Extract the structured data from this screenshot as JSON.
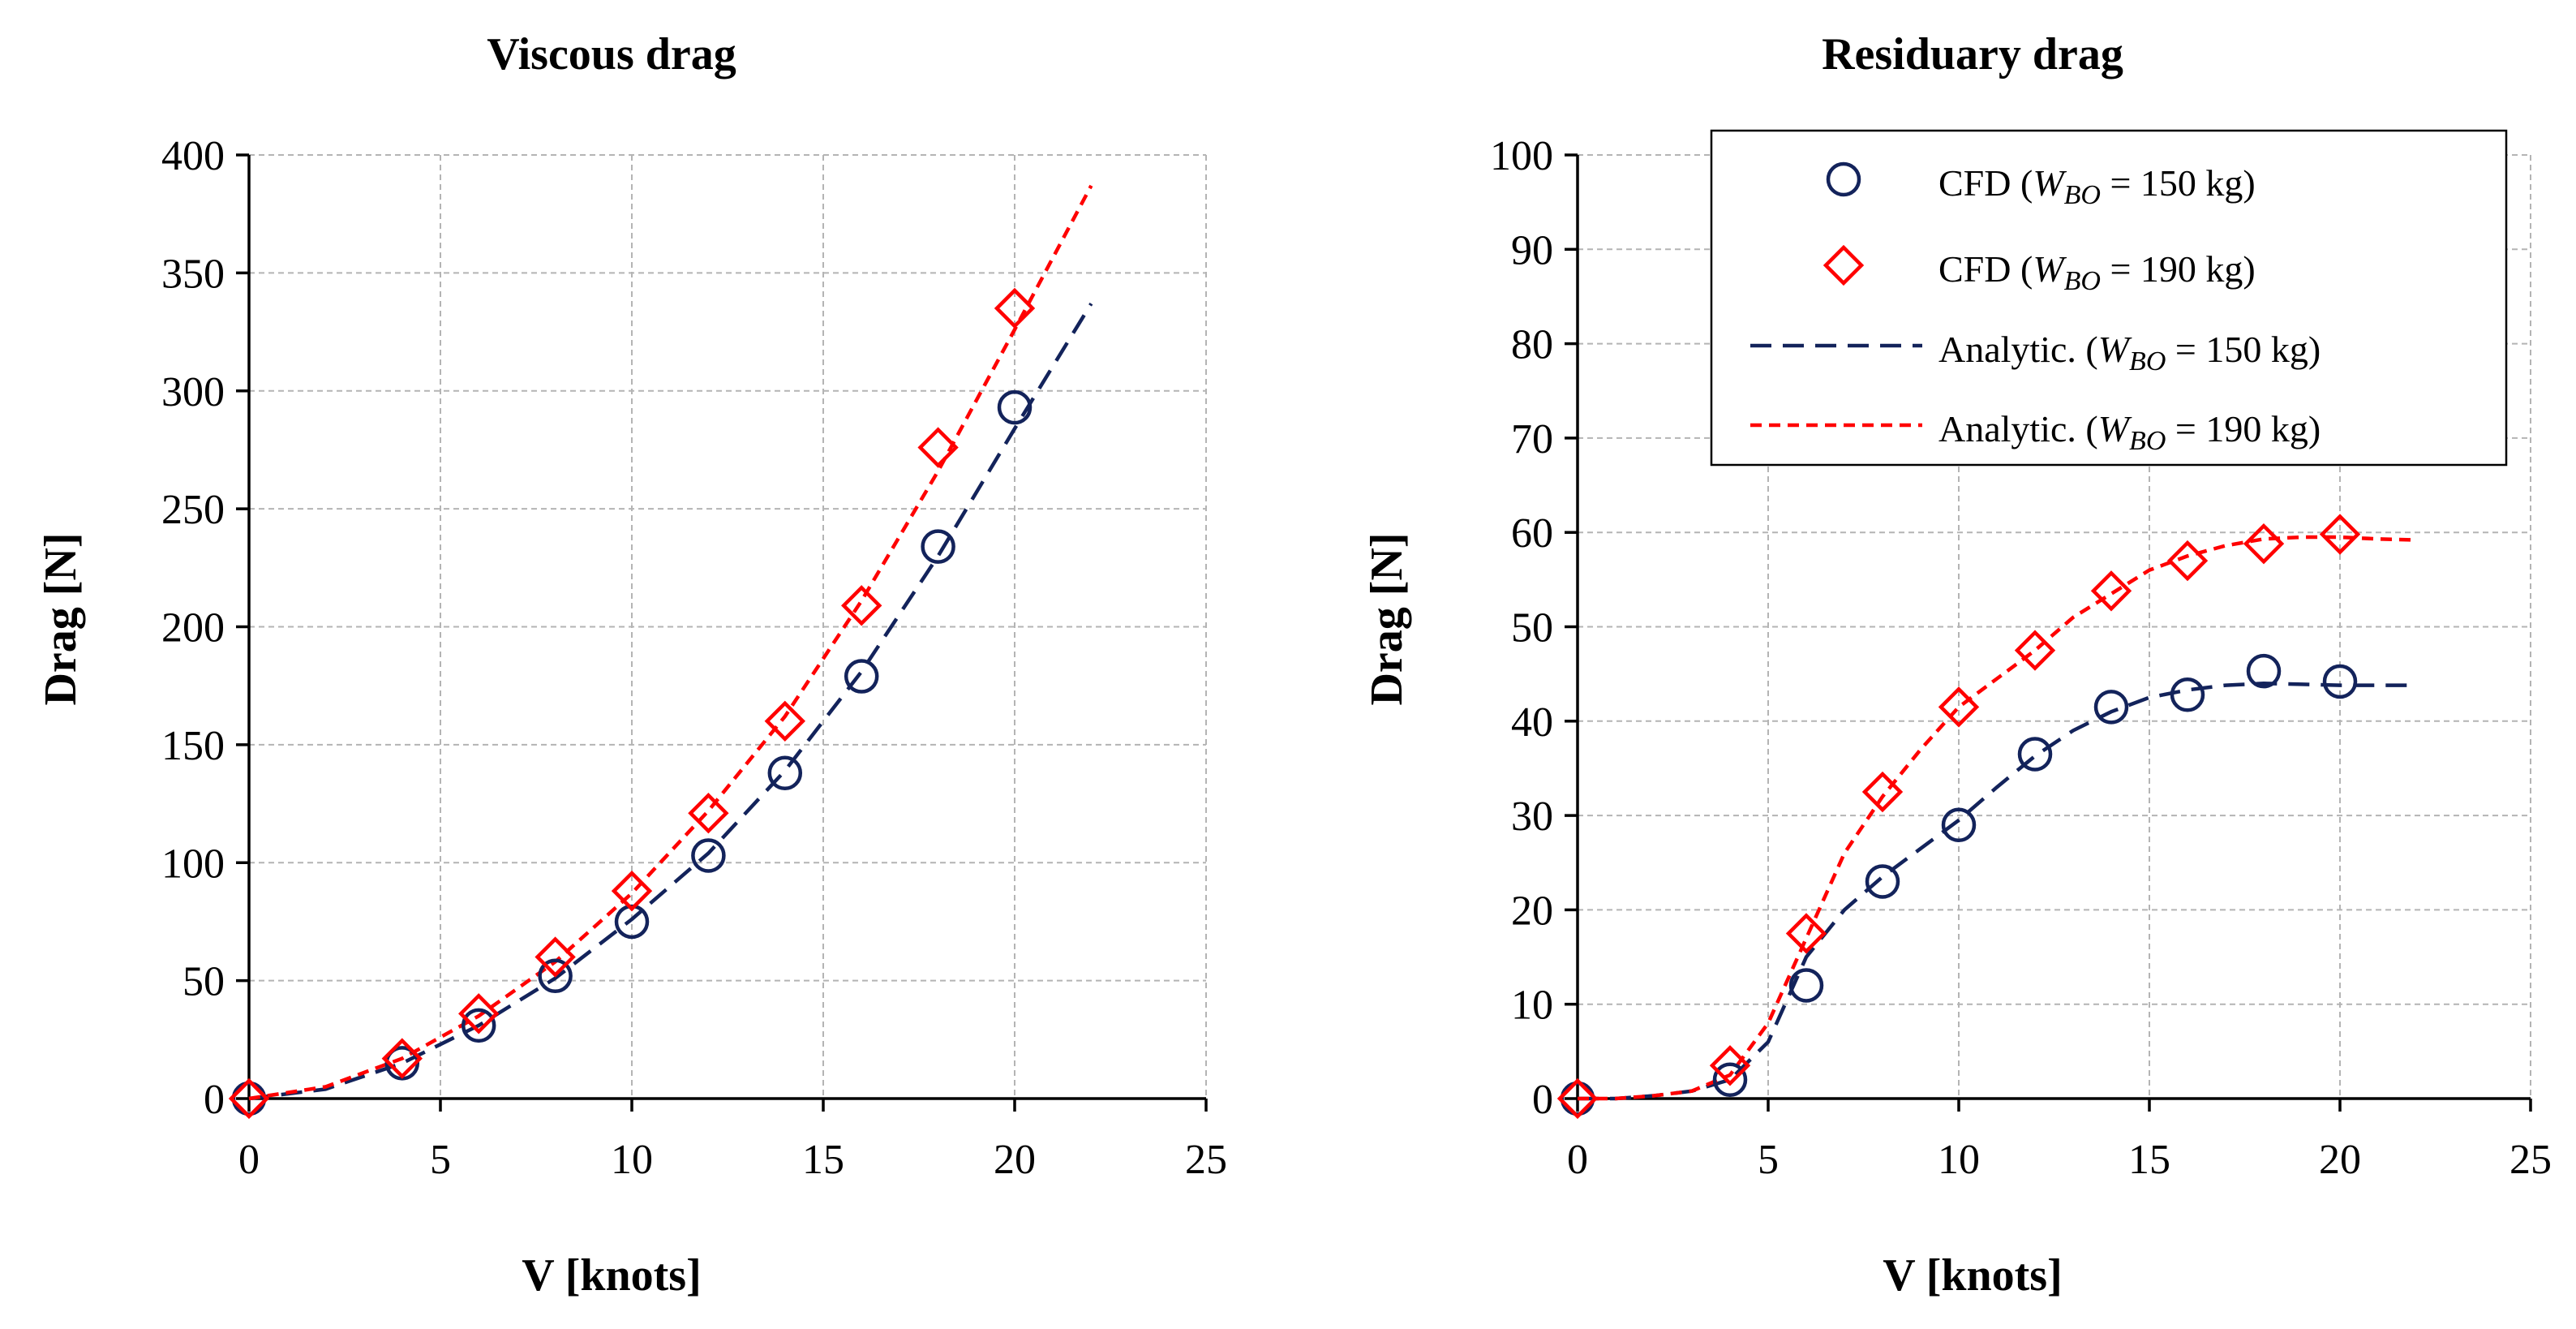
{
  "colors": {
    "navy": "#13235b",
    "red": "#ff0000",
    "grid": "#b4b4b4"
  },
  "legend": {
    "entries": [
      {
        "series": "cfd_150",
        "prefix": "CFD (",
        "var": "W",
        "sub": "BO",
        "suffix": " = 150 kg)"
      },
      {
        "series": "cfd_190",
        "prefix": "CFD (",
        "var": "W",
        "sub": "BO",
        "suffix": " = 190 kg)"
      },
      {
        "series": "an_150",
        "prefix": "Analytic. (",
        "var": "W",
        "sub": "BO",
        "suffix": " = 150 kg)"
      },
      {
        "series": "an_190",
        "prefix": "Analytic. (",
        "var": "W",
        "sub": "BO",
        "suffix": " = 190 kg)"
      }
    ]
  },
  "chart_data": [
    {
      "type": "scatter",
      "title": "Viscous drag",
      "xlabel": "V [knots]",
      "ylabel": "Drag [N]",
      "xlim": [
        0,
        25
      ],
      "ylim": [
        0,
        400
      ],
      "xticks": [
        0,
        5,
        10,
        15,
        20,
        25
      ],
      "yticks": [
        0,
        50,
        100,
        150,
        200,
        250,
        300,
        350,
        400
      ],
      "grid": true,
      "legend": "none",
      "series": [
        {
          "id": "cfd_150",
          "kind": "marker-circle",
          "color": "#13235b",
          "x": [
            0,
            4,
            6,
            8,
            10,
            12,
            14,
            16,
            18,
            20
          ],
          "y": [
            0,
            15,
            31,
            52,
            75,
            103,
            138,
            179,
            234,
            293
          ]
        },
        {
          "id": "cfd_190",
          "kind": "marker-diamond",
          "color": "#ff0000",
          "x": [
            0,
            4,
            6,
            8,
            10,
            12,
            14,
            16,
            18,
            20
          ],
          "y": [
            0,
            17,
            36,
            60,
            88,
            121,
            160,
            209,
            276,
            335
          ]
        },
        {
          "id": "an_150",
          "kind": "line-longdash",
          "color": "#13235b",
          "x": [
            0,
            2,
            4,
            6,
            8,
            10,
            12,
            14,
            16,
            18,
            20,
            22
          ],
          "y": [
            0,
            4,
            15,
            31,
            51,
            76,
            104,
            139,
            181,
            230,
            284,
            337
          ]
        },
        {
          "id": "an_190",
          "kind": "line-shortdash",
          "color": "#ff0000",
          "x": [
            0,
            2,
            4,
            6,
            8,
            10,
            12,
            14,
            16,
            18,
            20,
            22
          ],
          "y": [
            0,
            5,
            17,
            35,
            58,
            87,
            122,
            162,
            211,
            266,
            326,
            387
          ]
        }
      ]
    },
    {
      "type": "scatter",
      "title": "Residuary drag",
      "xlabel": "V [knots]",
      "ylabel": "Drag [N]",
      "xlim": [
        0,
        25
      ],
      "ylim": [
        0,
        100
      ],
      "xticks": [
        0,
        5,
        10,
        15,
        20,
        25
      ],
      "yticks": [
        0,
        10,
        20,
        30,
        40,
        50,
        60,
        70,
        80,
        90,
        100
      ],
      "grid": true,
      "legend": "top-right",
      "series": [
        {
          "id": "cfd_150",
          "kind": "marker-circle",
          "color": "#13235b",
          "x": [
            0,
            4,
            6,
            8,
            10,
            12,
            14,
            16,
            18,
            20
          ],
          "y": [
            0,
            2,
            12,
            23,
            29,
            36.5,
            41.5,
            42.8,
            45.3,
            44.2
          ]
        },
        {
          "id": "cfd_190",
          "kind": "marker-diamond",
          "color": "#ff0000",
          "x": [
            0,
            4,
            6,
            8,
            10,
            12,
            14,
            16,
            18,
            20
          ],
          "y": [
            0,
            3.5,
            17.5,
            32.5,
            41.5,
            47.5,
            53.8,
            57,
            58.8,
            59.8
          ]
        },
        {
          "id": "an_150",
          "kind": "line-longdash",
          "color": "#13235b",
          "x": [
            0,
            1,
            2,
            3,
            4,
            5,
            6,
            7,
            8,
            9,
            10,
            11,
            12,
            13,
            14,
            15,
            16,
            17,
            18,
            19,
            20,
            21,
            22
          ],
          "y": [
            0,
            0,
            0.3,
            0.8,
            2,
            6,
            15,
            20,
            23.5,
            26.5,
            29.5,
            33,
            36.3,
            39,
            41,
            42.5,
            43.3,
            43.8,
            44,
            43.9,
            43.8,
            43.8,
            43.8
          ]
        },
        {
          "id": "an_190",
          "kind": "line-shortdash",
          "color": "#ff0000",
          "x": [
            0,
            1,
            2,
            3,
            4,
            5,
            6,
            7,
            8,
            9,
            10,
            11,
            12,
            13,
            14,
            15,
            16,
            17,
            18,
            19,
            20,
            21,
            22
          ],
          "y": [
            0,
            0,
            0.3,
            0.8,
            2.5,
            8,
            17,
            26,
            32,
            37,
            41.5,
            44.5,
            47.5,
            51,
            53.5,
            56,
            57.5,
            58.6,
            59.3,
            59.5,
            59.5,
            59.3,
            59.2
          ]
        }
      ]
    }
  ]
}
